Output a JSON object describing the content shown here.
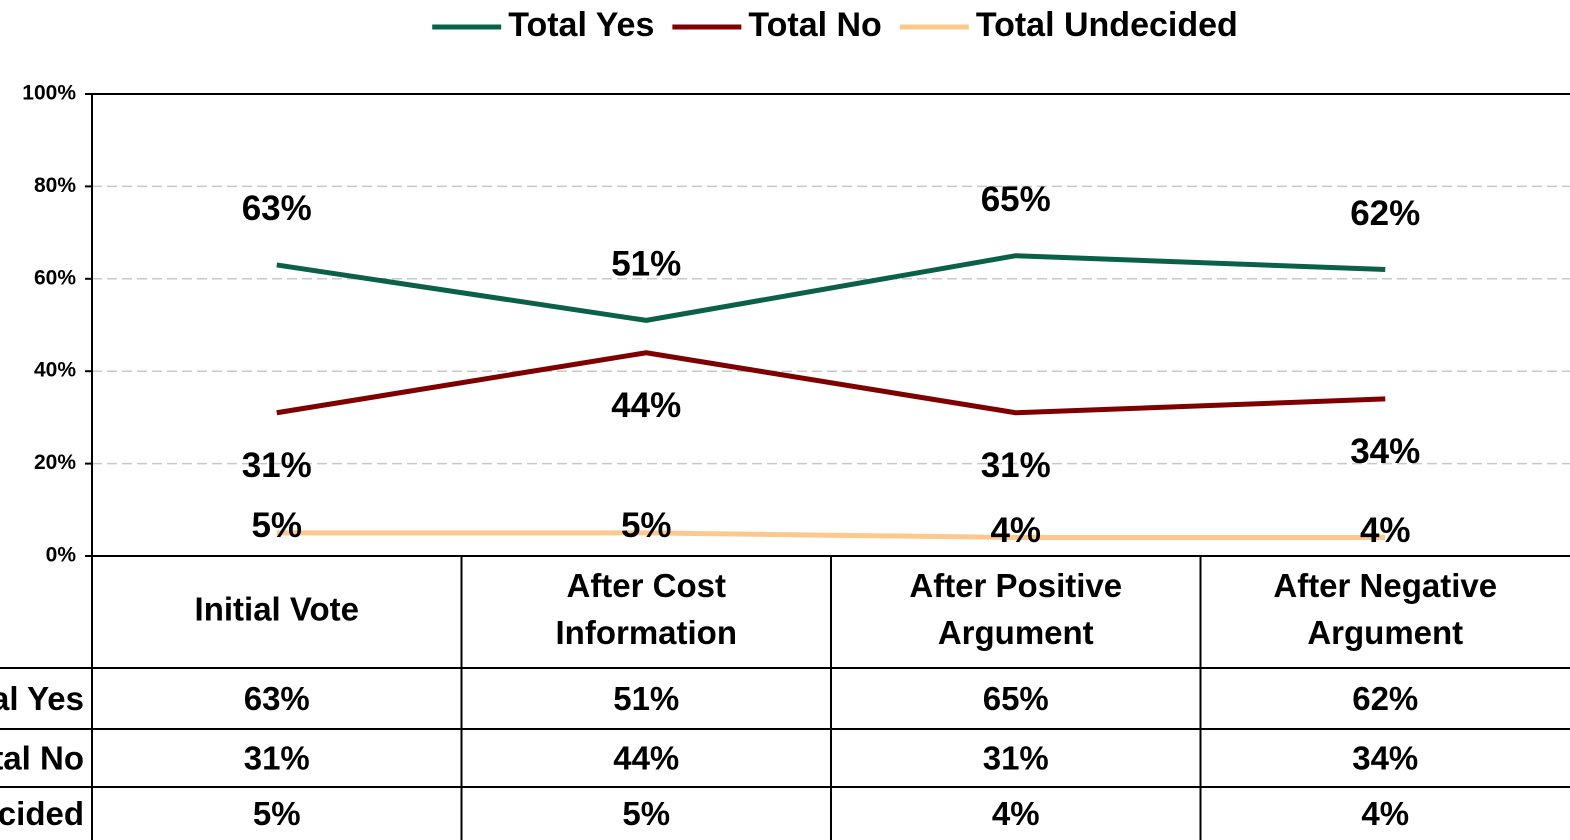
{
  "chart_data": {
    "type": "line",
    "categories": [
      [
        "Initial Vote"
      ],
      [
        "After Cost",
        "Information"
      ],
      [
        "After Positive",
        "Argument"
      ],
      [
        "After Negative",
        "Argument"
      ]
    ],
    "series": [
      {
        "name": "Total Yes",
        "color": "#0b6148",
        "values": [
          63,
          51,
          65,
          62
        ],
        "value_labels": [
          "63%",
          "51%",
          "65%",
          "62%"
        ]
      },
      {
        "name": "Total No",
        "color": "#7f0000",
        "values": [
          31,
          44,
          31,
          34
        ],
        "value_labels": [
          "31%",
          "44%",
          "31%",
          "34%"
        ]
      },
      {
        "name": "Total Undecided",
        "color": "#fcc88e",
        "values": [
          5,
          5,
          4,
          4
        ],
        "value_labels": [
          "5%",
          "5%",
          "4%",
          "4%"
        ]
      }
    ],
    "ylim": [
      0,
      100
    ],
    "yticks": [
      {
        "value": 0,
        "label": "0%"
      },
      {
        "value": 20,
        "label": "20%"
      },
      {
        "value": 40,
        "label": "40%"
      },
      {
        "value": 60,
        "label": "60%"
      },
      {
        "value": 80,
        "label": "80%"
      },
      {
        "value": 100,
        "label": "100%"
      }
    ],
    "grid": true,
    "legend": "top"
  }
}
